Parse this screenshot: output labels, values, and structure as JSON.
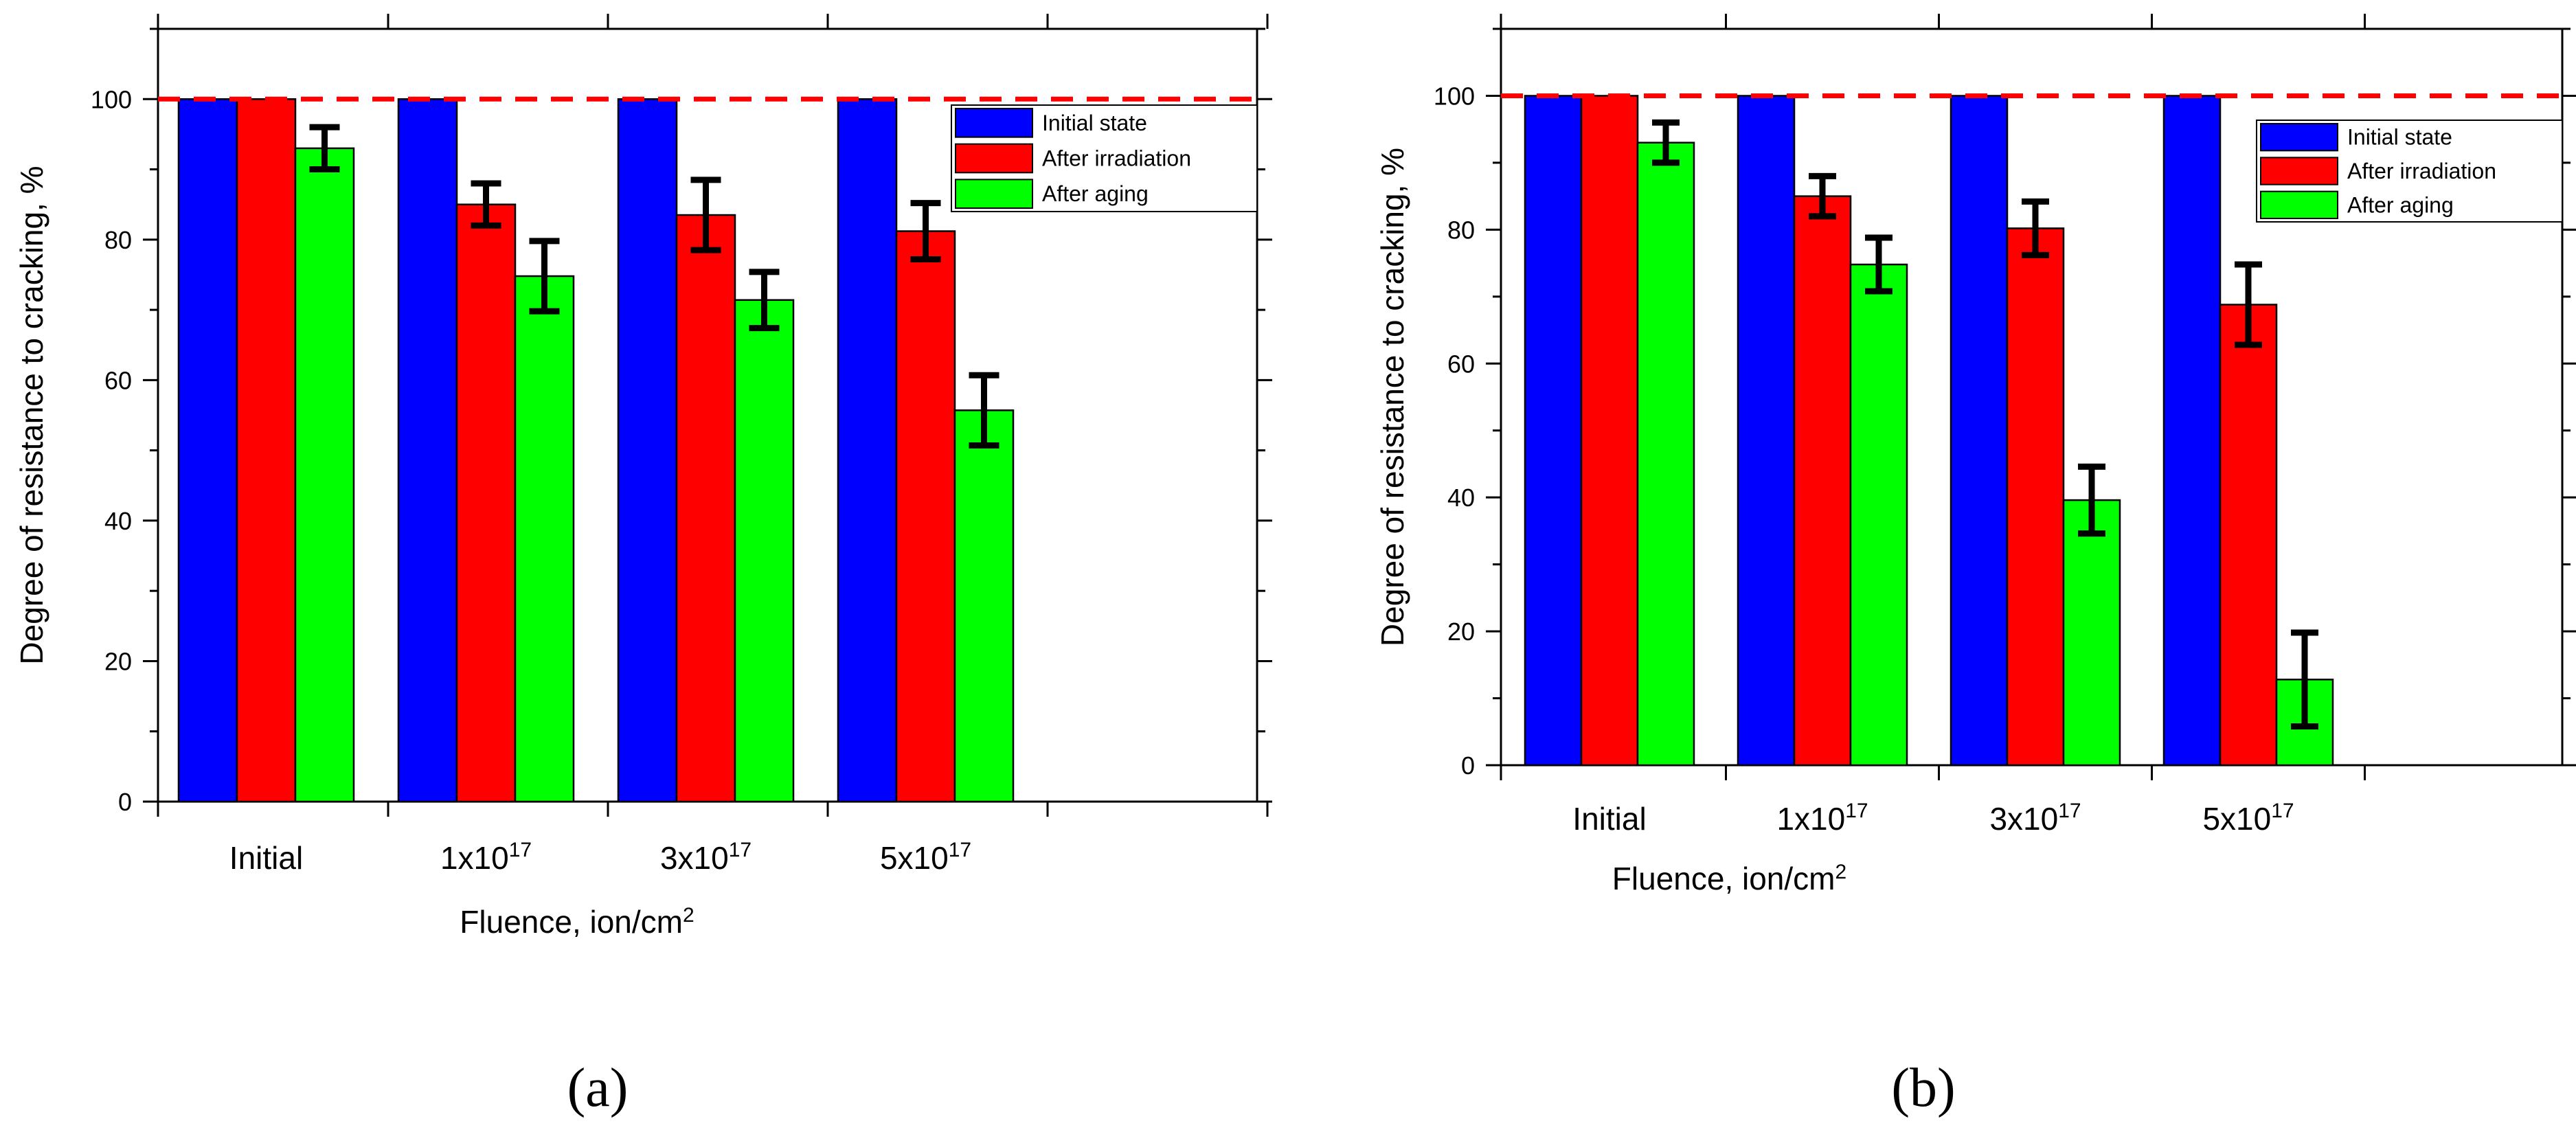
{
  "chart_data": [
    {
      "type": "bar",
      "panel_label": "(a)",
      "categories": [
        "Initial",
        "1x10",
        "3x10",
        "5x10"
      ],
      "category_exponents": [
        "",
        "17",
        "17",
        "17"
      ],
      "series": [
        {
          "name": "Initial state",
          "color": "#0000ff",
          "values": [
            100,
            100,
            100,
            100
          ],
          "errors": [
            0,
            0,
            0,
            0
          ]
        },
        {
          "name": "After irradiation",
          "color": "#ff0000",
          "values": [
            100,
            85,
            83.5,
            81.2
          ],
          "errors": [
            0,
            3,
            5,
            4
          ]
        },
        {
          "name": "After aging",
          "color": "#00ff00",
          "values": [
            93,
            74.8,
            71.4,
            55.7
          ],
          "errors": [
            3,
            5,
            4,
            5
          ]
        }
      ],
      "reference_line": {
        "value": 100,
        "color": "#ff0000",
        "style": "dashed"
      },
      "ylim": [
        0,
        110
      ],
      "yticks": [
        0,
        20,
        40,
        60,
        80,
        100
      ],
      "ytick_labels": [
        "0",
        "20",
        "40",
        "60",
        "80",
        "100"
      ],
      "xlabel": "Fluence, ion/cm",
      "xlabel_exponent": "2",
      "ylabel": "Degree of resistance to cracking, %",
      "legend": "top-right",
      "grid": false
    },
    {
      "type": "bar",
      "panel_label": "(b)",
      "categories": [
        "Initial",
        "1x10",
        "3x10",
        "5x10"
      ],
      "category_exponents": [
        "",
        "17",
        "17",
        "17"
      ],
      "series": [
        {
          "name": "Initial state",
          "color": "#0000ff",
          "values": [
            100,
            100,
            100,
            100
          ],
          "errors": [
            0,
            0,
            0,
            0
          ]
        },
        {
          "name": "After irradiation",
          "color": "#ff0000",
          "values": [
            100,
            85,
            80.2,
            68.8
          ],
          "errors": [
            0,
            3,
            4,
            6
          ]
        },
        {
          "name": "After aging",
          "color": "#00ff00",
          "values": [
            93,
            74.8,
            39.6,
            12.8
          ],
          "errors": [
            3,
            4,
            5,
            7
          ]
        }
      ],
      "reference_line": {
        "value": 100,
        "color": "#ff0000",
        "style": "dashed"
      },
      "ylim": [
        0,
        110
      ],
      "yticks": [
        0,
        20,
        40,
        60,
        80,
        100
      ],
      "ytick_labels": [
        "0",
        "20",
        "40",
        "60",
        "80",
        "100"
      ],
      "xlabel": "Fluence, ion/cm",
      "xlabel_exponent": "2",
      "ylabel": "Degree of resistance to cracking, %",
      "legend": "top-right",
      "grid": false
    }
  ]
}
